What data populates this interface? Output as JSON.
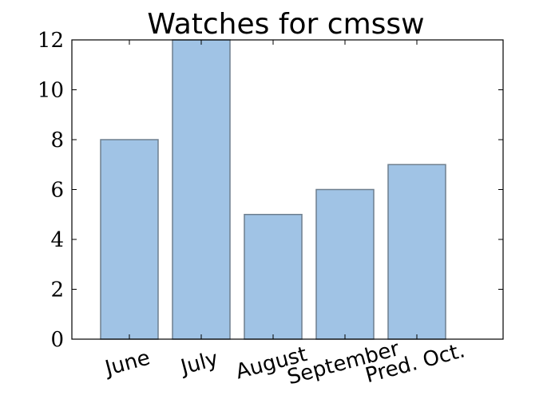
{
  "chart_data": {
    "type": "bar",
    "title": "Watches for cmssw",
    "categories": [
      "June",
      "July",
      "August",
      "September",
      "Pred. Oct."
    ],
    "values": [
      8,
      12,
      5,
      6,
      7
    ],
    "ylim": [
      0,
      12
    ],
    "yticks": [
      "0",
      "2",
      "4",
      "6",
      "8",
      "10",
      "12"
    ],
    "xlabel": "",
    "ylabel": "",
    "grid": false,
    "colors": {
      "bar_fill": "#a0c3e5",
      "bar_edge": "#6e7f8e",
      "axis": "#000000"
    }
  }
}
